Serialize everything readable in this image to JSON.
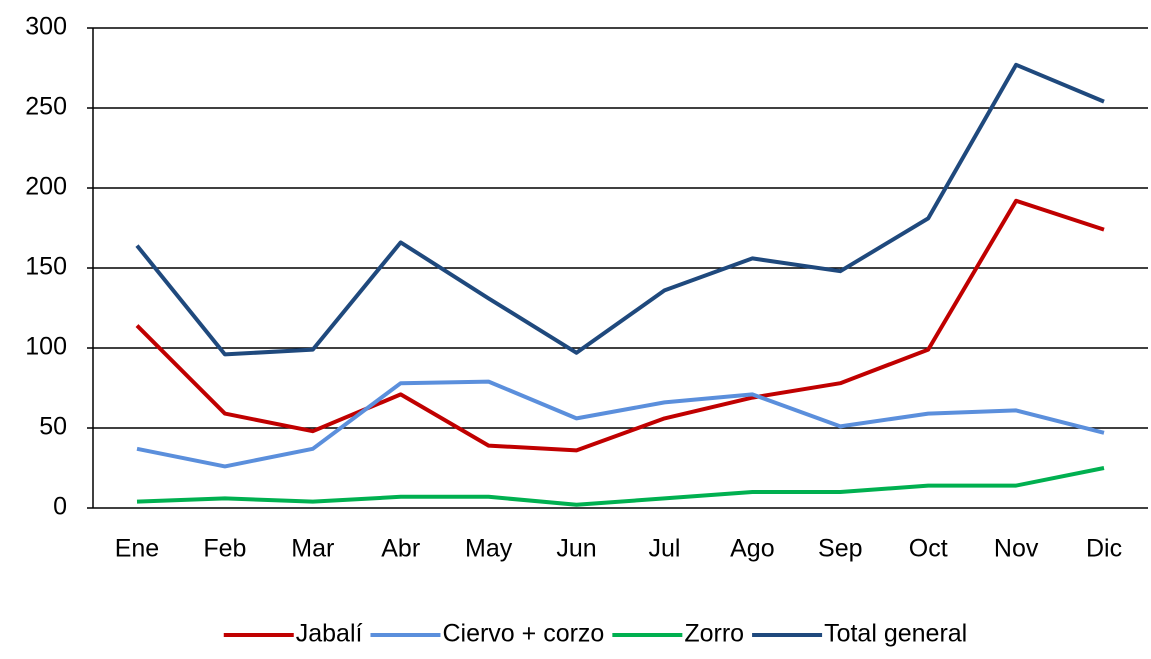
{
  "chart_data": {
    "type": "line",
    "categories": [
      "Ene",
      "Feb",
      "Mar",
      "Abr",
      "May",
      "Jun",
      "Jul",
      "Ago",
      "Sep",
      "Oct",
      "Nov",
      "Dic"
    ],
    "series": [
      {
        "name": "Jabalí",
        "color": "#c00000",
        "values": [
          114,
          59,
          48,
          71,
          39,
          36,
          56,
          69,
          78,
          99,
          192,
          174
        ]
      },
      {
        "name": "Ciervo + corzo",
        "color": "#5b8fdc",
        "values": [
          37,
          26,
          37,
          78,
          79,
          56,
          66,
          71,
          51,
          59,
          61,
          47
        ]
      },
      {
        "name": "Zorro",
        "color": "#00b050",
        "values": [
          4,
          6,
          4,
          7,
          7,
          2,
          6,
          10,
          10,
          14,
          14,
          25
        ]
      },
      {
        "name": "Total general",
        "color": "#1f497d",
        "values": [
          164,
          96,
          99,
          166,
          131,
          97,
          136,
          156,
          148,
          181,
          277,
          254
        ]
      }
    ],
    "ylim": [
      0,
      300
    ],
    "yticks": [
      0,
      50,
      100,
      150,
      200,
      250,
      300
    ],
    "grid": true,
    "legend": "bottom"
  }
}
